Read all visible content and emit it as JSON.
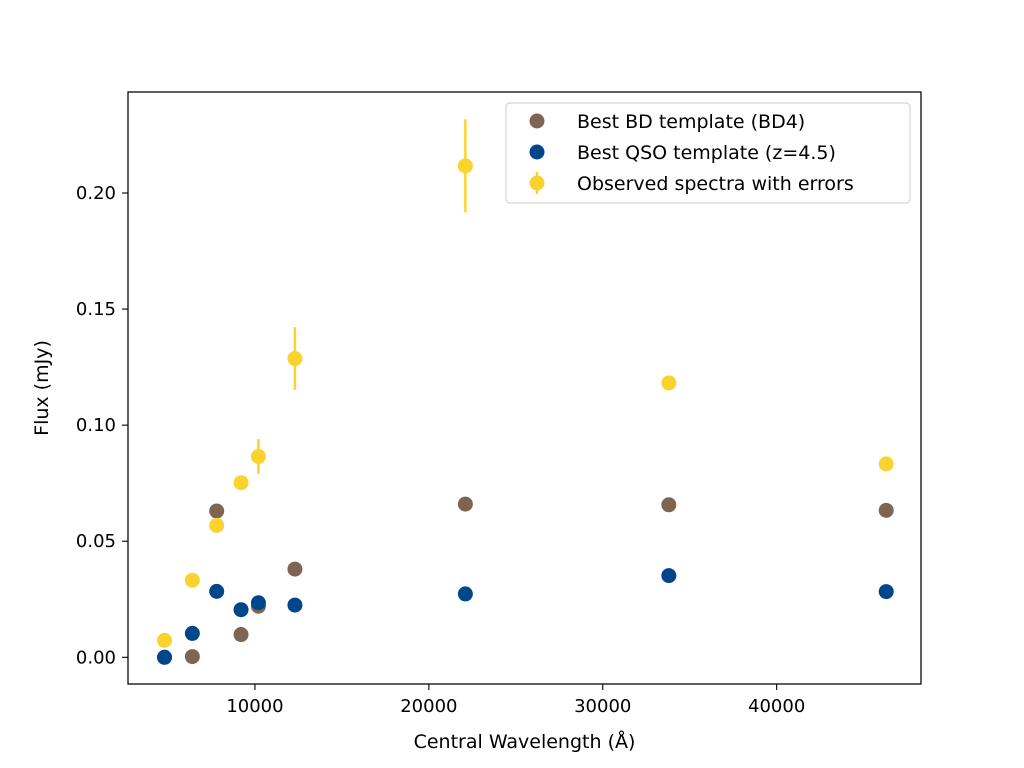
{
  "chart_data": {
    "type": "scatter",
    "title": "",
    "xlabel": "Central Wavelength (Å)",
    "ylabel": "Flux (mJy)",
    "xlim": [
      2700,
      48300
    ],
    "ylim": [
      -0.0115,
      0.2435
    ],
    "xticks": [
      10000,
      20000,
      30000,
      40000
    ],
    "xtick_labels": [
      "10000",
      "20000",
      "30000",
      "40000"
    ],
    "yticks": [
      0.0,
      0.05,
      0.1,
      0.15,
      0.2
    ],
    "ytick_labels": [
      "0.00",
      "0.05",
      "0.10",
      "0.15",
      "0.20"
    ],
    "grid": false,
    "legend_position": "top-right",
    "series": [
      {
        "name": "Best BD template (BD4)",
        "color": "#7f6452",
        "marker": "circle",
        "x": [
          4800,
          6400,
          7800,
          9200,
          10200,
          12300,
          22100,
          33800,
          46300
        ],
        "y": [
          0.0,
          0.0003,
          0.063,
          0.0098,
          0.022,
          0.038,
          0.066,
          0.0657,
          0.0633
        ]
      },
      {
        "name": "Best QSO template (z=4.5)",
        "color": "#00468b",
        "marker": "circle",
        "x": [
          4800,
          6400,
          7800,
          9200,
          10200,
          12300,
          22100,
          33800,
          46300
        ],
        "y": [
          0.0,
          0.0103,
          0.0284,
          0.0205,
          0.0235,
          0.0225,
          0.0273,
          0.0352,
          0.0283
        ]
      },
      {
        "name": "Observed spectra with errors",
        "color": "#fcd22f",
        "marker": "circle-errorbar",
        "x": [
          4800,
          6400,
          7800,
          9200,
          10200,
          12300,
          22100,
          33800,
          46300
        ],
        "y": [
          0.0073,
          0.0332,
          0.0568,
          0.0752,
          0.0865,
          0.1287,
          0.2117,
          0.1182,
          0.0833
        ],
        "yerr": [
          0.0,
          0.0,
          0.0,
          0.0,
          0.0075,
          0.0135,
          0.02,
          0.0,
          0.0
        ]
      }
    ]
  }
}
